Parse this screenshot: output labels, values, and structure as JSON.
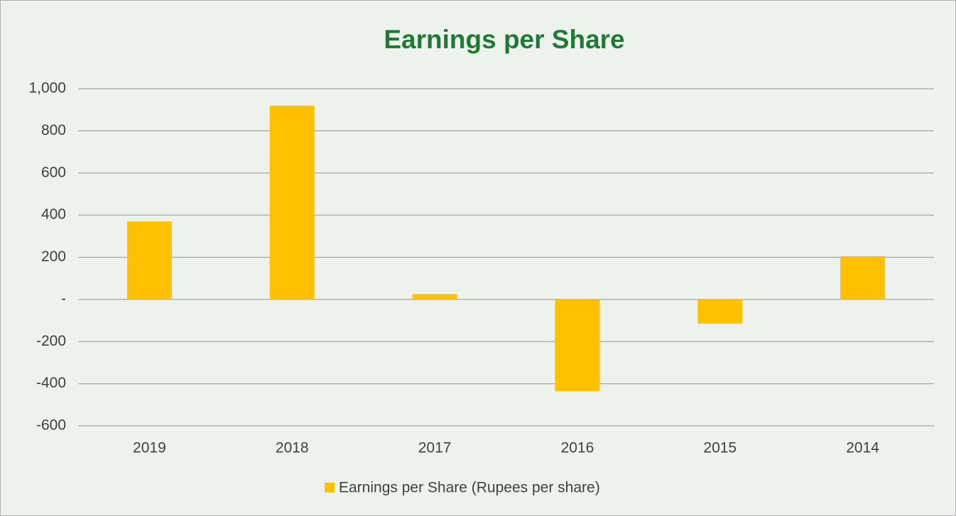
{
  "chart_data": {
    "type": "bar",
    "title": "Earnings per Share",
    "categories": [
      "2019",
      "2018",
      "2017",
      "2016",
      "2015",
      "2014"
    ],
    "series": [
      {
        "name": "Earnings per Share (Rupees per share)",
        "color": "#ffc000",
        "values": [
          370,
          920,
          25,
          -435,
          -115,
          205
        ]
      }
    ],
    "ylim": [
      -600,
      1000
    ],
    "yticks": [
      -600,
      -400,
      -200,
      {
        "value": 0,
        "label": "-"
      },
      200,
      400,
      600,
      800,
      {
        "value": 1000,
        "label": "1,000"
      }
    ],
    "grid": true,
    "legend": "bottom"
  }
}
